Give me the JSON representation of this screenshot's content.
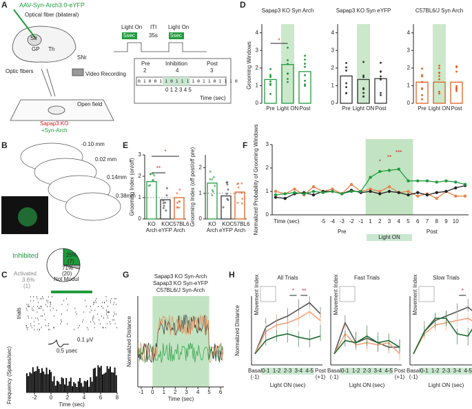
{
  "panel_labels": [
    "A",
    "B",
    "C",
    "D",
    "E",
    "F",
    "G",
    "H"
  ],
  "panel_a": {
    "virus": "AAV-Syn-Arch3.0-eYFP",
    "fiber": "Optical fiber (bilateral)",
    "regions": [
      "Str",
      "GP",
      "Th",
      "SNr"
    ],
    "optic_fibers": "Optic fibers",
    "video": "Video Recording",
    "open_field": "Open field",
    "mouse": "Sapap3 KO",
    "mouse_virus": "+Syn-Arch",
    "protocol": {
      "light_on": "Light On",
      "duration": "5sec",
      "iti": "ITI",
      "iti_duration": "35s",
      "pre": "Pre",
      "pre_score": "2",
      "inhibition": "Inhibition",
      "inhibition_score": "4",
      "post": "Post",
      "post_score": "3",
      "bits": "0 1 0 0 1 1 0 1 1 1 1 0 1 1 0 1 1 1 0",
      "seconds": "0 1 2 3 4 5",
      "time": "Time (sec)"
    }
  },
  "panel_b": {
    "levels": [
      "-0.10 mm",
      "0.02 mm",
      "0.14mm",
      "0.38mm"
    ]
  },
  "panel_c": {
    "pie": {
      "labels": [
        "Inhibited",
        "Activated",
        "Not Modul"
      ],
      "values": [
        25,
        3.6,
        71
      ],
      "value_labels": [
        "25%",
        "3.6%",
        "71%"
      ],
      "counts": [
        "(7)",
        "(1)",
        "(20)"
      ],
      "colors": [
        "#1f9a3c",
        "#bbbbbb",
        "#ffffff"
      ]
    },
    "raster_label": "trials",
    "scale_v": "0.1 μV",
    "scale_t": "0.5 μsec",
    "ylabel": "Frequency (Spikes/sec)",
    "xticks": [
      -2,
      0,
      2,
      4,
      6,
      8
    ],
    "xlim": [
      -3,
      8
    ],
    "xlabel": "Time (sec)"
  },
  "panel_d": {
    "ylabel": "Grooming Windows",
    "categories": [
      "Pre",
      "Light ON",
      "Post"
    ],
    "ylim": [
      0,
      4.3
    ],
    "yticks": [
      0,
      1,
      2,
      3,
      4
    ],
    "significance": "*",
    "charts": [
      {
        "title": "Sapap3 KO Syn Arch",
        "color": "#1f9a3c",
        "values": [
          1.35,
          2.2,
          1.8
        ]
      },
      {
        "title": "Sapap3 KO Syn eYFP",
        "color": "#333333",
        "values": [
          1.55,
          1.35,
          1.4
        ]
      },
      {
        "title": "C57BL6/J Syn Arch",
        "color": "#e0601e",
        "values": [
          1.2,
          1.2,
          1.2
        ]
      }
    ]
  },
  "panel_e": {
    "categories": [
      "KO Arch",
      "KO eYFP",
      "C57BL6 Arch"
    ],
    "colors": [
      "#1f9a3c",
      "#333333",
      "#e0601e"
    ],
    "charts": [
      {
        "ylabel": "Grooming Index (on/off)",
        "ylim": [
          0,
          3
        ],
        "yticks": [
          0,
          1,
          2,
          3
        ],
        "values": [
          1.75,
          0.9,
          1.0
        ],
        "significance": [
          "*",
          "**"
        ]
      },
      {
        "ylabel": "Grooming Index (off post/off pre)",
        "ylim": [
          0,
          2.5
        ],
        "yticks": [
          0,
          1,
          2
        ],
        "values": [
          1.4,
          0.9,
          1.05
        ]
      }
    ]
  },
  "panel_f": {
    "ylabel": "Normalized Probability of Grooming Windows",
    "ylim": [
      0,
      3
    ],
    "yticks": [
      0,
      1,
      2,
      3
    ],
    "xlabel": "Time (sec)",
    "pre": "Pre",
    "light_on": "Light ON",
    "post": "Post",
    "significance": [
      "*",
      "**",
      "***"
    ],
    "categories": [
      null,
      null,
      null,
      null,
      null,
      "-5",
      "-4",
      "-3",
      "-2",
      "-1",
      "1",
      "2",
      "3",
      "4",
      "5",
      "6",
      "7",
      "8",
      "9",
      "10",
      null
    ],
    "series": [
      {
        "color": "#e8804a",
        "values": [
          1.0,
          0.9,
          1.1,
          0.85,
          1.2,
          1.0,
          1.1,
          0.9,
          1.3,
          1.0,
          1.1,
          1.0,
          1.2,
          0.95,
          1.0,
          0.8,
          0.9,
          0.7,
          1.0,
          0.8,
          0.8
        ]
      },
      {
        "color": "#222222",
        "values": [
          0.75,
          0.7,
          0.9,
          0.95,
          0.85,
          1.0,
          1.0,
          0.9,
          1.05,
          0.95,
          1.0,
          0.9,
          1.0,
          0.95,
          0.85,
          0.95,
          0.85,
          0.95,
          1.0,
          1.15,
          1.25
        ]
      },
      {
        "color": "#1f9a3c",
        "values": [
          0.85,
          0.9,
          0.95,
          0.9,
          1.0,
          0.95,
          1.0,
          0.9,
          1.0,
          1.0,
          1.6,
          1.85,
          1.9,
          1.95,
          1.45,
          1.45,
          1.45,
          1.4,
          1.45,
          1.4,
          1.3
        ]
      }
    ]
  },
  "panel_g": {
    "legend": [
      {
        "name": "Sapap3 KO Syn-Arch",
        "color": "#1f9a3c"
      },
      {
        "name": "Sapap3 KO Syn-eYFP",
        "color": "#222222"
      },
      {
        "name": "C57BL6/J Syn-Arch",
        "color": "#e8804a"
      }
    ],
    "ylabel": "Normalized Distance",
    "xticks": [
      -1,
      0,
      1,
      2,
      3,
      4,
      5,
      6
    ],
    "xlim": [
      -1.3,
      6.3
    ],
    "xlabel": "Time (sec)"
  },
  "panel_h": {
    "ylabel": "Normalized Distance",
    "inset": "Movement Index",
    "xlabel": "Light ON (sec)",
    "ylim": [
      0.5,
      3.6
    ],
    "categories": [
      "Basal (-1)",
      "0-1",
      "1-2",
      "2-3",
      "3-4",
      "4-5",
      "Post (+1)"
    ],
    "colors": [
      "#555555",
      "#f2a27a",
      "#1d6b2e"
    ],
    "charts": [
      {
        "title": "All Trials",
        "significance": [
          "*",
          "**"
        ],
        "series": [
          [
            1,
            2.2,
            2.5,
            2.7,
            3.0,
            3.3,
            2.8
          ],
          [
            1,
            2.0,
            2.3,
            2.4,
            2.6,
            2.9,
            2.5
          ],
          [
            1,
            1.6,
            1.8,
            1.9,
            1.75,
            1.65,
            1.8
          ]
        ]
      },
      {
        "title": "Fast Trials",
        "series": [
          [
            1,
            2.4,
            1.5,
            1.7,
            1.5,
            1.3,
            1.3
          ],
          [
            1,
            1.9,
            1.4,
            1.5,
            1.4,
            1.5,
            1.0
          ],
          [
            1,
            1.6,
            1.5,
            1.8,
            1.5,
            1.6,
            1.3
          ]
        ]
      },
      {
        "title": "Slow Trials",
        "significance": [
          "*"
        ],
        "series": [
          [
            1,
            2.0,
            2.5,
            2.7,
            2.9,
            3.1,
            2.7
          ],
          [
            1,
            1.9,
            2.3,
            2.4,
            2.5,
            2.6,
            2.3
          ],
          [
            1,
            2.0,
            2.6,
            2.6,
            1.9,
            1.8,
            2.6
          ]
        ]
      }
    ]
  }
}
